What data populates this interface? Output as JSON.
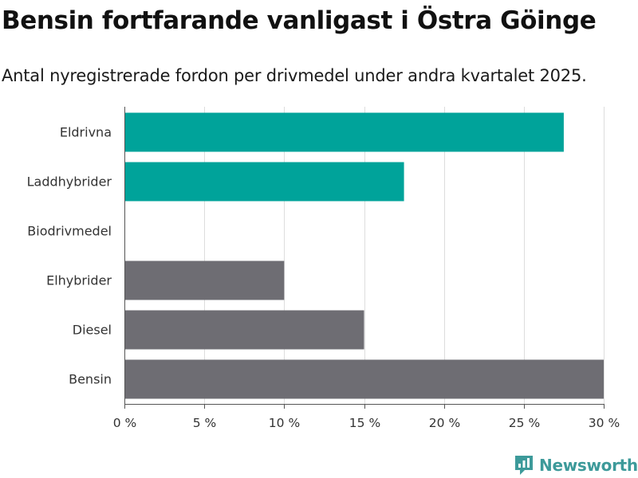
{
  "title": "Bensin fortfarande vanligast i Östra Göinge",
  "subtitle": "Antal nyregistrerade fordon per drivmedel under andra kvartalet 2025.",
  "brand": {
    "name": "Newsworthy",
    "icon": "newsworthy-logo-icon"
  },
  "colors": {
    "teal": "#00a39a",
    "gray": "#6e6d73",
    "grid": "#dddddd",
    "axis": "#555555",
    "brand": "#3d9a9a"
  },
  "chart_data": {
    "type": "bar",
    "orientation": "horizontal",
    "categories": [
      "Eldrivna",
      "Laddhybrider",
      "Biodrivmedel",
      "Elhybrider",
      "Diesel",
      "Bensin"
    ],
    "values": [
      27.5,
      17.5,
      0,
      10,
      15,
      30
    ],
    "bar_colors": [
      "#00a39a",
      "#00a39a",
      "#00a39a",
      "#6e6d73",
      "#6e6d73",
      "#6e6d73"
    ],
    "xlim": [
      0,
      30
    ],
    "xticks": [
      0,
      5,
      10,
      15,
      20,
      25,
      30
    ],
    "xtick_labels": [
      "0 %",
      "5 %",
      "10 %",
      "15 %",
      "20 %",
      "25 %",
      "30 %"
    ],
    "grid": true,
    "legend": false
  }
}
